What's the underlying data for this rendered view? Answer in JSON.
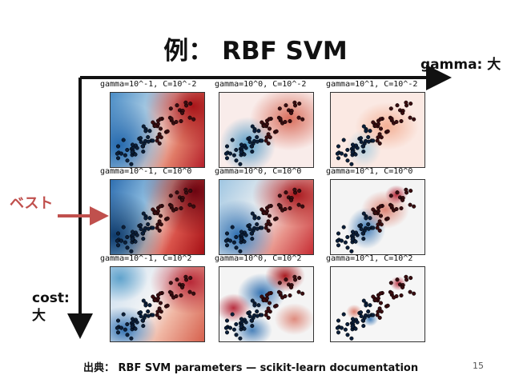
{
  "slide": {
    "title": "例： RBF SVM",
    "x_axis_label": "gamma: 大",
    "y_axis_label": "cost:\n大",
    "best_label": "ベスト",
    "source": "出典： RBF SVM parameters — scikit-learn documentation",
    "page_number": "15"
  },
  "colors": {
    "arrow": "#c0504d",
    "axis": "#111111",
    "red": "#b2182b",
    "blue": "#2166ac"
  },
  "grid": {
    "captions": [
      [
        "gamma=10^-1, C=10^-2",
        "gamma=10^0, C=10^-2",
        "gamma=10^1, C=10^-2"
      ],
      [
        "gamma=10^-1, C=10^0",
        "gamma=10^0, C=10^0",
        "gamma=10^1, C=10^0"
      ],
      [
        "gamma=10^-1, C=10^2",
        "gamma=10^0, C=10^2",
        "gamma=10^1, C=10^2"
      ]
    ]
  }
}
